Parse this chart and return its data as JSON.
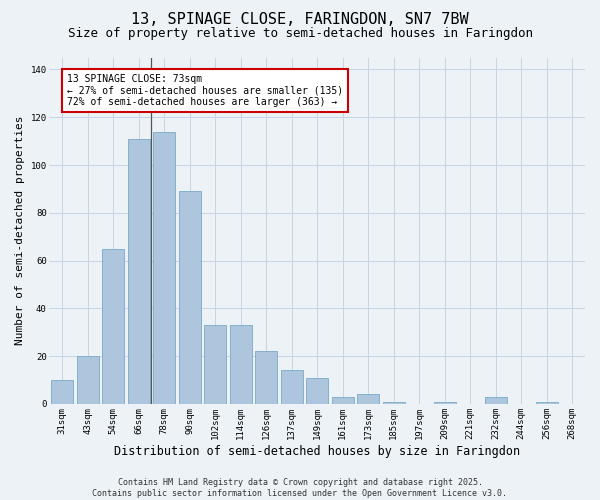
{
  "title1": "13, SPINAGE CLOSE, FARINGDON, SN7 7BW",
  "title2": "Size of property relative to semi-detached houses in Faringdon",
  "xlabel": "Distribution of semi-detached houses by size in Faringdon",
  "ylabel": "Number of semi-detached properties",
  "categories": [
    "31sqm",
    "43sqm",
    "54sqm",
    "66sqm",
    "78sqm",
    "90sqm",
    "102sqm",
    "114sqm",
    "126sqm",
    "137sqm",
    "149sqm",
    "161sqm",
    "173sqm",
    "185sqm",
    "197sqm",
    "209sqm",
    "221sqm",
    "232sqm",
    "244sqm",
    "256sqm",
    "268sqm"
  ],
  "values": [
    10,
    20,
    65,
    111,
    114,
    89,
    33,
    33,
    22,
    14,
    11,
    3,
    4,
    1,
    0,
    1,
    0,
    3,
    0,
    1,
    0
  ],
  "bar_color": "#adc6de",
  "bar_edge_color": "#7aaac8",
  "bg_color": "#edf2f7",
  "annotation_text": "13 SPINAGE CLOSE: 73sqm\n← 27% of semi-detached houses are smaller (135)\n72% of semi-detached houses are larger (363) →",
  "annotation_box_color": "#ffffff",
  "annotation_box_edge": "#cc0000",
  "property_bar_index": 3,
  "ylim": [
    0,
    145
  ],
  "yticks": [
    0,
    20,
    40,
    60,
    80,
    100,
    120,
    140
  ],
  "footer_line1": "Contains HM Land Registry data © Crown copyright and database right 2025.",
  "footer_line2": "Contains public sector information licensed under the Open Government Licence v3.0.",
  "grid_color": "#c5d5e5",
  "title1_fontsize": 11,
  "title2_fontsize": 9,
  "xlabel_fontsize": 8.5,
  "ylabel_fontsize": 8,
  "tick_fontsize": 6.5,
  "annotation_fontsize": 7,
  "footer_fontsize": 6
}
